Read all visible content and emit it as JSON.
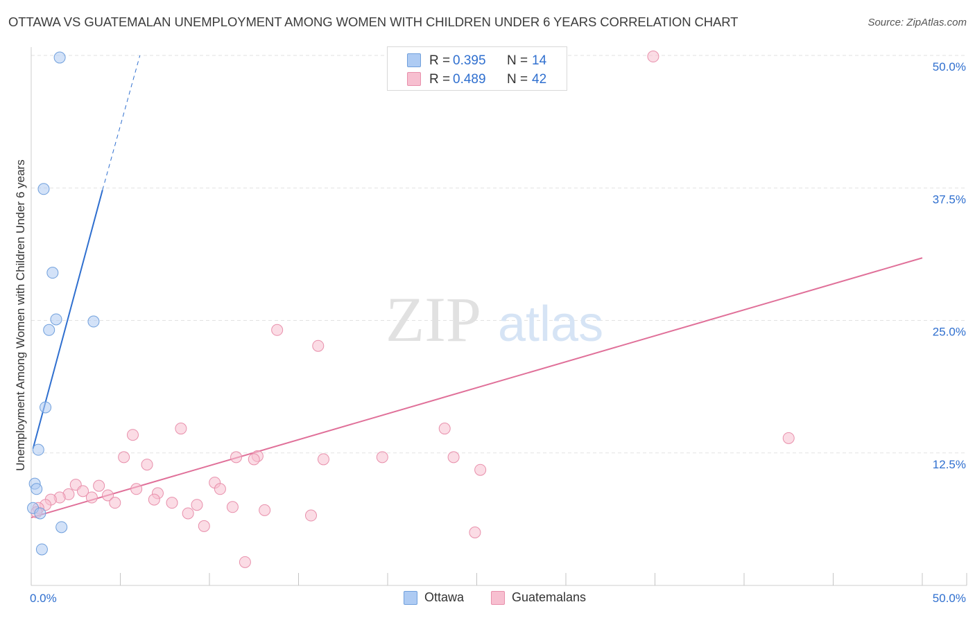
{
  "title": "OTTAWA VS GUATEMALAN UNEMPLOYMENT AMONG WOMEN WITH CHILDREN UNDER 6 YEARS CORRELATION CHART",
  "source": "Source: ZipAtlas.com",
  "watermark": {
    "zip": "ZIP",
    "atlas": "atlas"
  },
  "legend": {
    "rows": [
      {
        "r_label": "R =",
        "r_value": "0.395",
        "n_label": "N =",
        "n_value": "14",
        "color": "#aecbf3"
      },
      {
        "r_label": "R =",
        "r_value": "0.489",
        "n_label": "N =",
        "n_value": "42",
        "color": "#f7bfd0"
      }
    ]
  },
  "bottom_legend": [
    {
      "label": "Ottawa",
      "color": "#aecbf3"
    },
    {
      "label": "Guatemalans",
      "color": "#f7bfd0"
    }
  ],
  "chart_data": {
    "type": "scatter",
    "title": "OTTAWA VS GUATEMALAN UNEMPLOYMENT AMONG WOMEN WITH CHILDREN UNDER 6 YEARS CORRELATION CHART",
    "xlabel": "",
    "ylabel": "Unemployment Among Women with Children Under 6 years",
    "xlim": [
      0,
      50
    ],
    "ylim": [
      0,
      50
    ],
    "x_tick_labels": [
      "0.0%",
      "50.0%"
    ],
    "y_ticks": [
      12.5,
      25.0,
      37.5,
      50.0
    ],
    "y_tick_labels": [
      "12.5%",
      "25.0%",
      "37.5%",
      "50.0%"
    ],
    "grid": "horizontal dashed",
    "legend_placement": "top-center",
    "series": [
      {
        "name": "Ottawa",
        "color": "#aecbf3",
        "edge_color": "#6f9fdc",
        "line_color": "#2f6fcf",
        "R": 0.395,
        "N": 14,
        "points": [
          [
            1.6,
            49.8
          ],
          [
            0.7,
            37.4
          ],
          [
            1.2,
            29.5
          ],
          [
            1.4,
            25.1
          ],
          [
            3.5,
            24.9
          ],
          [
            1.0,
            24.1
          ],
          [
            0.8,
            16.8
          ],
          [
            0.4,
            12.8
          ],
          [
            0.2,
            9.6
          ],
          [
            0.3,
            9.1
          ],
          [
            0.1,
            7.3
          ],
          [
            0.5,
            6.8
          ],
          [
            1.7,
            5.5
          ],
          [
            0.6,
            3.4
          ]
        ],
        "trend": {
          "x0": 0.1,
          "y0": 12.9,
          "x1": 4.0,
          "y1": 37.3,
          "dash_to_x": 6.1,
          "dash_to_y": 50.0
        }
      },
      {
        "name": "Guatemalans",
        "color": "#f7bfd0",
        "edge_color": "#e88fab",
        "line_color": "#e07099",
        "R": 0.489,
        "N": 42,
        "points": [
          [
            34.9,
            49.9
          ],
          [
            13.8,
            24.1
          ],
          [
            16.1,
            22.6
          ],
          [
            23.2,
            14.8
          ],
          [
            8.4,
            14.8
          ],
          [
            42.5,
            13.9
          ],
          [
            5.7,
            14.2
          ],
          [
            5.2,
            12.1
          ],
          [
            11.5,
            12.1
          ],
          [
            12.7,
            12.2
          ],
          [
            12.5,
            11.9
          ],
          [
            16.4,
            11.9
          ],
          [
            19.7,
            12.1
          ],
          [
            23.7,
            12.1
          ],
          [
            6.5,
            11.4
          ],
          [
            25.2,
            10.9
          ],
          [
            2.5,
            9.5
          ],
          [
            3.8,
            9.4
          ],
          [
            10.3,
            9.7
          ],
          [
            5.9,
            9.1
          ],
          [
            2.9,
            8.9
          ],
          [
            10.6,
            9.1
          ],
          [
            2.1,
            8.6
          ],
          [
            4.3,
            8.5
          ],
          [
            3.4,
            8.3
          ],
          [
            1.6,
            8.3
          ],
          [
            7.1,
            8.7
          ],
          [
            1.1,
            8.1
          ],
          [
            6.9,
            8.1
          ],
          [
            4.7,
            7.8
          ],
          [
            7.9,
            7.8
          ],
          [
            9.3,
            7.6
          ],
          [
            0.8,
            7.6
          ],
          [
            11.3,
            7.4
          ],
          [
            13.1,
            7.1
          ],
          [
            8.8,
            6.8
          ],
          [
            0.4,
            7.3
          ],
          [
            0.3,
            6.9
          ],
          [
            15.7,
            6.6
          ],
          [
            9.7,
            5.6
          ],
          [
            24.9,
            5.0
          ],
          [
            12.0,
            2.2
          ]
        ],
        "trend": {
          "x0": 0.0,
          "y0": 6.4,
          "x1": 50.0,
          "y1": 30.9
        }
      }
    ]
  }
}
